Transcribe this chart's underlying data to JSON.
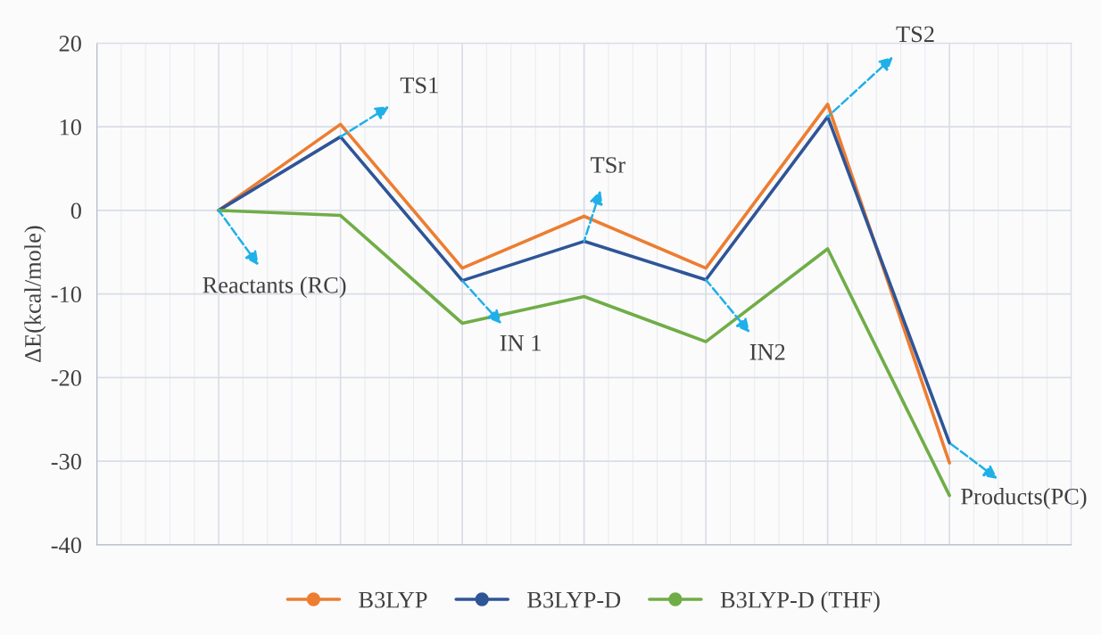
{
  "chart_data": {
    "type": "line",
    "ylabel": "ΔE(kcal/mole)",
    "categories": [
      null,
      null,
      null,
      null,
      null,
      null,
      null,
      null,
      null
    ],
    "ylim": [
      -40,
      20
    ],
    "yticks": [
      -40,
      -30,
      -20,
      -10,
      0,
      10,
      20
    ],
    "grid": true,
    "legend": "bottom",
    "series": [
      {
        "name": "B3LYP",
        "color": "#ed7d31",
        "values": [
          null,
          0,
          10.3,
          -6.9,
          -0.7,
          -6.9,
          12.7,
          -30.2,
          null
        ]
      },
      {
        "name": "B3LYP-D",
        "color": "#2f5597",
        "values": [
          null,
          0,
          8.8,
          -8.4,
          -3.7,
          -8.3,
          11.2,
          -27.8,
          null
        ]
      },
      {
        "name": "B3LYP-D (THF)",
        "color": "#70ad47",
        "values": [
          null,
          0,
          -0.6,
          -13.5,
          -10.3,
          -15.7,
          -4.6,
          -34.1,
          null
        ]
      }
    ],
    "annotations": [
      "Reactants (RC)",
      "TS1",
      "IN 1",
      "TSr",
      "IN2",
      "TS2",
      "Products(PC)"
    ]
  }
}
